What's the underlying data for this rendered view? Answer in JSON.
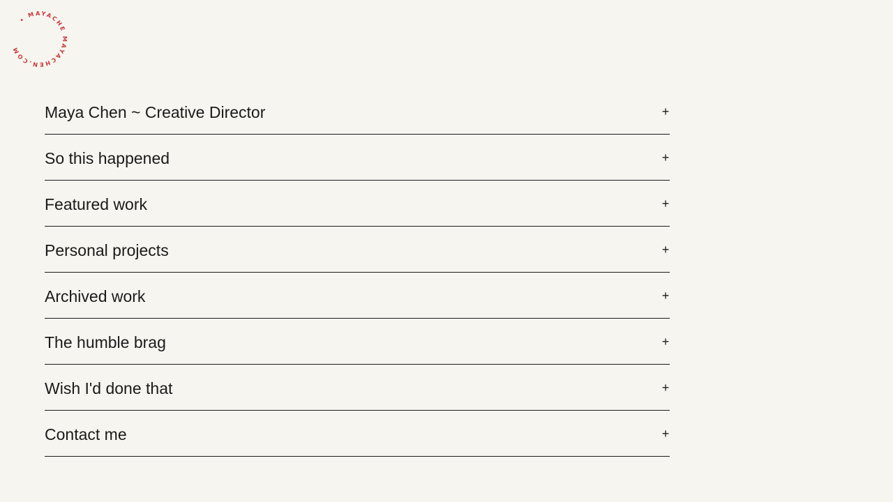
{
  "logo": {
    "text": "• MAYACHE MAYACHEN.COM ",
    "color": "#c8383a"
  },
  "accordion": {
    "expand_icon": "plus-icon",
    "items": [
      {
        "label": "Maya Chen ~ Creative Director",
        "icon": "+"
      },
      {
        "label": "So this happened",
        "icon": "+"
      },
      {
        "label": "Featured work",
        "icon": "+"
      },
      {
        "label": "Personal projects",
        "icon": "+"
      },
      {
        "label": "Archived work",
        "icon": "+"
      },
      {
        "label": "The humble brag",
        "icon": "+"
      },
      {
        "label": "Wish I'd done that",
        "icon": "+"
      },
      {
        "label": "Contact me",
        "icon": "+"
      }
    ]
  }
}
